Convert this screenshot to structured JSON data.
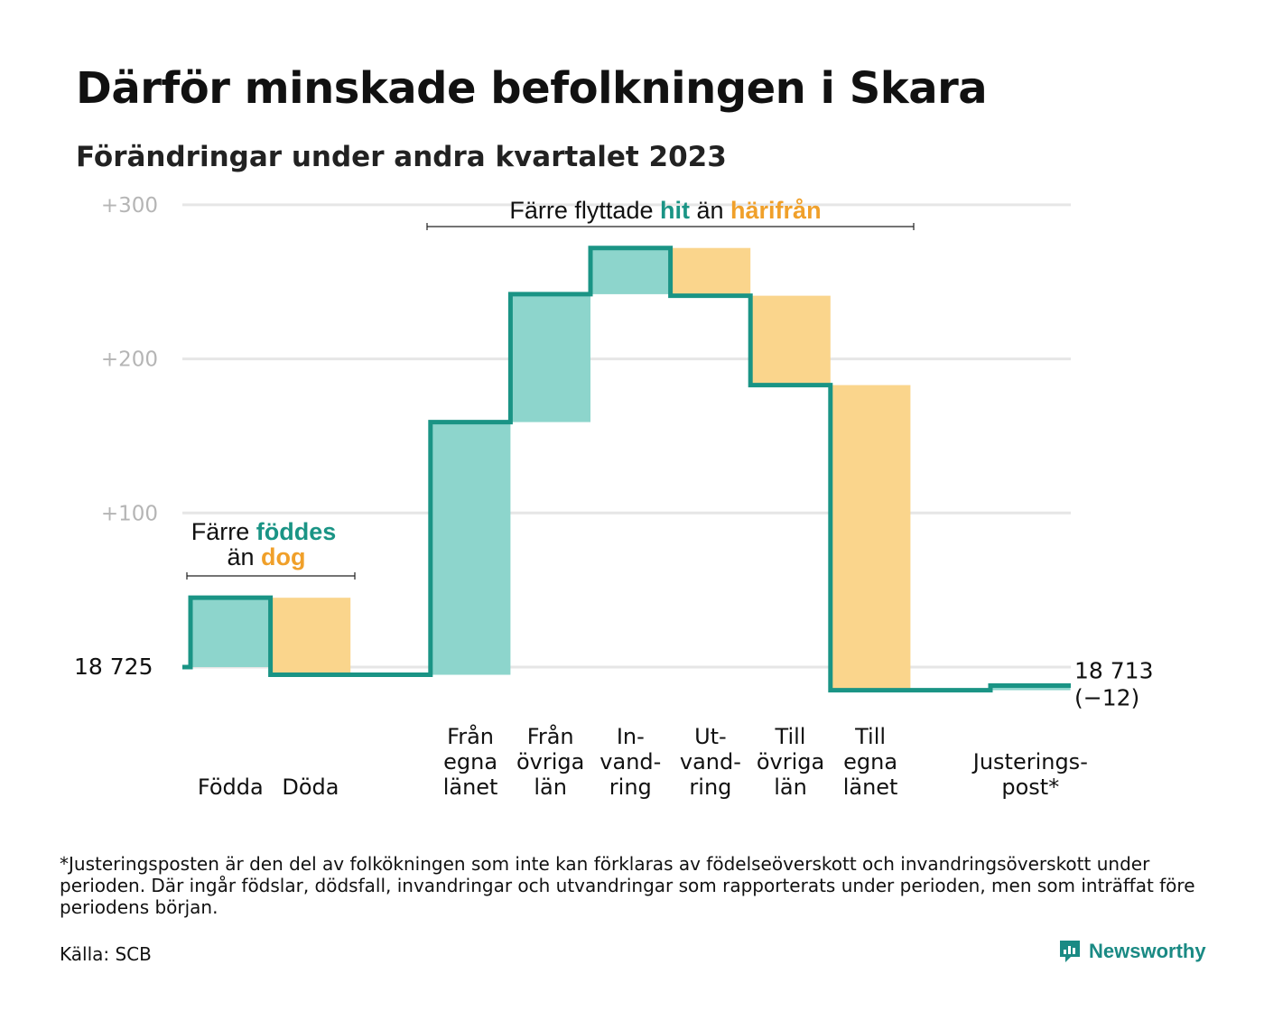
{
  "title": "Därför minskade befolkningen i Skara",
  "subtitle": "Förändringar under andra kvartalet 2023",
  "footnote": "*Justeringsposten är den del av folkökningen som inte kan förklaras av födelseöverskott och invandringsöverskott under perioden. Där ingår födslar, dödsfall, invandringar och utvandringar som rapporterats under perioden, men som inträffat före periodens början.",
  "source": "Källa: SCB",
  "logo_text": "Newsworthy",
  "colors": {
    "inflow": "#8dd5cc",
    "outflow": "#fad58c",
    "line": "#1a9485",
    "hit_text": "#1a9485",
    "out_text": "#f0a02a",
    "grid": "#e6e6e6",
    "tick": "#b5b5b5"
  },
  "annotations": {
    "births": {
      "line1_plain": "Färre",
      "line1_highlight": "föddes",
      "line2_plain": "än",
      "line2_highlight": "dog"
    },
    "migration": {
      "plain1": "Färre flyttade",
      "highlight1": "hit",
      "plain2": "än",
      "highlight2": "härifrån"
    }
  },
  "chart_data": {
    "type": "waterfall",
    "title": "Därför minskade befolkningen i Skara",
    "subtitle": "Förändringar under andra kvartalet 2023",
    "y_ticks": [
      "+100",
      "+200",
      "+300"
    ],
    "y_tick_values": [
      100,
      200,
      300
    ],
    "ylim": [
      -15,
      305
    ],
    "start_label": "18  725",
    "start_value": 18725,
    "end_label_line1": "18 713",
    "end_label_line2": "(−12)",
    "end_value": 18713,
    "net_change": -12,
    "categories": [
      {
        "label": [
          "Födda"
        ],
        "value": 45,
        "kind": "in"
      },
      {
        "label": [
          "Döda"
        ],
        "value": -50,
        "kind": "out"
      },
      {
        "label": [],
        "value": 0,
        "kind": "gap"
      },
      {
        "label": [
          "Från",
          "egna",
          "länet"
        ],
        "value": 164,
        "kind": "in"
      },
      {
        "label": [
          "Från",
          "övriga",
          "län"
        ],
        "value": 83,
        "kind": "in"
      },
      {
        "label": [
          "In-",
          "vand-",
          "ring"
        ],
        "value": 30,
        "kind": "in"
      },
      {
        "label": [
          "Ut-",
          "vand-",
          "ring"
        ],
        "value": -31,
        "kind": "out"
      },
      {
        "label": [
          "Till",
          "övriga",
          "län"
        ],
        "value": -58,
        "kind": "out"
      },
      {
        "label": [
          "Till",
          "egna",
          "länet"
        ],
        "value": -198,
        "kind": "out"
      },
      {
        "label": [],
        "value": 0,
        "kind": "gap"
      },
      {
        "label": [
          "Justerings-",
          "post*"
        ],
        "value": 3,
        "kind": "in"
      }
    ],
    "grid": true,
    "legend": "none"
  }
}
